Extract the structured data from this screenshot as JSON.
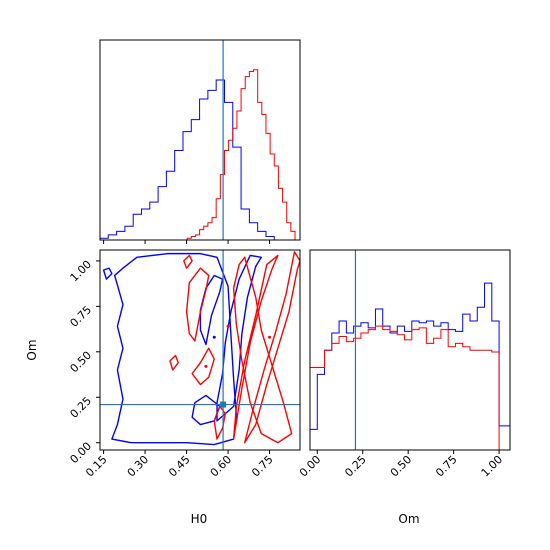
{
  "chart_data": {
    "type": "corner",
    "parameters": [
      "H0",
      "Om"
    ],
    "axis_labels": {
      "x_bottom_left": "H0",
      "x_bottom_right": "Om",
      "y_left": "Om"
    },
    "colors": {
      "series_a": "#0000ff",
      "series_b": "#ff0000",
      "truth": "#1f77b4"
    },
    "ranges": {
      "H0": [
        0.137,
        0.86
      ],
      "Om": [
        -0.04,
        1.06
      ]
    },
    "ticks": {
      "H0": [
        "0.15",
        "0.30",
        "0.45",
        "0.60",
        "0.75"
      ],
      "Om": [
        "0.00",
        "0.25",
        "0.50",
        "0.75",
        "1.00"
      ]
    },
    "truth": {
      "H0": 0.582,
      "Om": 0.21
    },
    "hist_H0": {
      "bin_edges": [
        0.137,
        0.152,
        0.167,
        0.182,
        0.197,
        0.212,
        0.227,
        0.242,
        0.257,
        0.272,
        0.287,
        0.302,
        0.317,
        0.332,
        0.347,
        0.362,
        0.377,
        0.392,
        0.407,
        0.422,
        0.437,
        0.452,
        0.467,
        0.482,
        0.497,
        0.512,
        0.527,
        0.542,
        0.557,
        0.572,
        0.587,
        0.602,
        0.617,
        0.632,
        0.647,
        0.662,
        0.677,
        0.692,
        0.707,
        0.722,
        0.737,
        0.752,
        0.767,
        0.782,
        0.797,
        0.812,
        0.827,
        0.842,
        0.86
      ],
      "blue": [
        0.01,
        0.01,
        0.03,
        0.03,
        0.05,
        0.05,
        0.08,
        0.08,
        0.15,
        0.15,
        0.18,
        0.18,
        0.22,
        0.22,
        0.31,
        0.31,
        0.4,
        0.4,
        0.52,
        0.52,
        0.63,
        0.63,
        0.7,
        0.7,
        0.82,
        0.82,
        0.87,
        0.87,
        0.93,
        0.93,
        0.8,
        0.8,
        0.54,
        0.54,
        0.18,
        0.18,
        0.1,
        0.1,
        0.05,
        0.05,
        0.02,
        0.02,
        0.0,
        0.0,
        0.0,
        0.0,
        0.0,
        0.0
      ],
      "red": [
        0.0,
        0.0,
        0.0,
        0.0,
        0.0,
        0.0,
        0.0,
        0.0,
        0.0,
        0.0,
        0.0,
        0.0,
        0.0,
        0.0,
        0.0,
        0.0,
        0.0,
        0.0,
        0.0,
        0.0,
        0.0,
        0.01,
        0.02,
        0.03,
        0.06,
        0.08,
        0.1,
        0.13,
        0.24,
        0.38,
        0.52,
        0.58,
        0.65,
        0.75,
        0.88,
        0.95,
        0.98,
        0.99,
        0.8,
        0.73,
        0.62,
        0.5,
        0.43,
        0.3,
        0.22,
        0.1,
        0.05,
        0.0
      ]
    },
    "hist_Om": {
      "bin_edges": [
        -0.04,
        0.0,
        0.04,
        0.08,
        0.12,
        0.16,
        0.2,
        0.24,
        0.28,
        0.32,
        0.36,
        0.4,
        0.44,
        0.48,
        0.52,
        0.56,
        0.6,
        0.64,
        0.68,
        0.72,
        0.76,
        0.8,
        0.84,
        0.88,
        0.92,
        0.96,
        1.0,
        1.06
      ],
      "blue": [
        0.12,
        0.44,
        0.58,
        0.68,
        0.75,
        0.68,
        0.72,
        0.74,
        0.71,
        0.82,
        0.72,
        0.68,
        0.72,
        0.69,
        0.75,
        0.74,
        0.75,
        0.72,
        0.74,
        0.7,
        0.69,
        0.79,
        0.75,
        0.83,
        0.97,
        0.75,
        0.14
      ],
      "red": [
        0.48,
        0.48,
        0.58,
        0.62,
        0.66,
        0.63,
        0.65,
        0.68,
        0.7,
        0.72,
        0.7,
        0.69,
        0.67,
        0.64,
        0.7,
        0.71,
        0.62,
        0.65,
        0.7,
        0.6,
        0.62,
        0.6,
        0.58,
        0.58,
        0.58,
        0.57,
        0.0
      ]
    },
    "contours_2d": {
      "blue": [
        [
          [
            0.19,
            0.92
          ],
          [
            0.22,
            0.96
          ],
          [
            0.27,
            1.02
          ],
          [
            0.38,
            1.04
          ],
          [
            0.5,
            1.04
          ],
          [
            0.56,
            1.02
          ],
          [
            0.6,
            0.86
          ],
          [
            0.61,
            0.6
          ],
          [
            0.62,
            0.35
          ],
          [
            0.63,
            0.15
          ],
          [
            0.62,
            0.02
          ],
          [
            0.55,
            -0.01
          ],
          [
            0.45,
            0.0
          ],
          [
            0.35,
            0.0
          ],
          [
            0.25,
            0.0
          ],
          [
            0.18,
            0.02
          ],
          [
            0.2,
            0.1
          ],
          [
            0.22,
            0.24
          ],
          [
            0.2,
            0.4
          ],
          [
            0.22,
            0.52
          ],
          [
            0.2,
            0.64
          ],
          [
            0.22,
            0.76
          ],
          [
            0.19,
            0.92
          ]
        ],
        [
          [
            0.56,
            0.12
          ],
          [
            0.62,
            0.2
          ],
          [
            0.64,
            0.4
          ],
          [
            0.65,
            0.6
          ],
          [
            0.67,
            0.8
          ],
          [
            0.7,
            0.97
          ],
          [
            0.72,
            1.02
          ],
          [
            0.68,
            1.03
          ],
          [
            0.64,
            0.9
          ],
          [
            0.61,
            0.72
          ],
          [
            0.59,
            0.55
          ],
          [
            0.58,
            0.38
          ],
          [
            0.56,
            0.22
          ],
          [
            0.56,
            0.12
          ]
        ],
        [
          [
            0.52,
            0.54
          ],
          [
            0.54,
            0.7
          ],
          [
            0.57,
            0.83
          ],
          [
            0.58,
            0.9
          ],
          [
            0.55,
            0.92
          ],
          [
            0.52,
            0.85
          ],
          [
            0.5,
            0.73
          ],
          [
            0.5,
            0.62
          ],
          [
            0.52,
            0.54
          ]
        ],
        [
          [
            0.16,
            0.9
          ],
          [
            0.18,
            0.93
          ],
          [
            0.17,
            0.96
          ],
          [
            0.15,
            0.95
          ],
          [
            0.16,
            0.9
          ]
        ],
        [
          [
            0.5,
            0.1
          ],
          [
            0.55,
            0.12
          ],
          [
            0.57,
            0.2
          ],
          [
            0.52,
            0.26
          ],
          [
            0.48,
            0.22
          ],
          [
            0.47,
            0.14
          ],
          [
            0.5,
            0.1
          ]
        ]
      ],
      "red": [
        [
          [
            0.64,
            0.98
          ],
          [
            0.66,
            1.02
          ],
          [
            0.7,
            0.8
          ],
          [
            0.72,
            0.62
          ],
          [
            0.76,
            0.42
          ],
          [
            0.8,
            0.22
          ],
          [
            0.83,
            0.05
          ],
          [
            0.78,
            0.0
          ],
          [
            0.72,
            0.05
          ],
          [
            0.68,
            0.22
          ],
          [
            0.65,
            0.45
          ],
          [
            0.63,
            0.65
          ],
          [
            0.62,
            0.85
          ],
          [
            0.64,
            0.98
          ]
        ],
        [
          [
            0.66,
            0.0
          ],
          [
            0.7,
            0.1
          ],
          [
            0.74,
            0.32
          ],
          [
            0.78,
            0.52
          ],
          [
            0.82,
            0.72
          ],
          [
            0.85,
            0.95
          ],
          [
            0.86,
            1.0
          ],
          [
            0.84,
            1.05
          ],
          [
            0.81,
            0.82
          ],
          [
            0.77,
            0.6
          ],
          [
            0.73,
            0.4
          ],
          [
            0.69,
            0.18
          ],
          [
            0.66,
            0.0
          ]
        ],
        [
          [
            0.62,
            0.02
          ],
          [
            0.65,
            0.3
          ],
          [
            0.68,
            0.55
          ],
          [
            0.72,
            0.78
          ],
          [
            0.76,
            0.96
          ],
          [
            0.78,
            1.03
          ],
          [
            0.74,
            0.98
          ],
          [
            0.7,
            0.7
          ],
          [
            0.66,
            0.45
          ],
          [
            0.63,
            0.2
          ],
          [
            0.62,
            0.02
          ]
        ],
        [
          [
            0.48,
            0.56
          ],
          [
            0.5,
            0.72
          ],
          [
            0.52,
            0.84
          ],
          [
            0.53,
            0.92
          ],
          [
            0.5,
            0.96
          ],
          [
            0.46,
            0.88
          ],
          [
            0.45,
            0.72
          ],
          [
            0.46,
            0.6
          ],
          [
            0.48,
            0.56
          ]
        ],
        [
          [
            0.47,
            0.38
          ],
          [
            0.5,
            0.44
          ],
          [
            0.53,
            0.52
          ],
          [
            0.55,
            0.46
          ],
          [
            0.53,
            0.36
          ],
          [
            0.5,
            0.32
          ],
          [
            0.47,
            0.38
          ]
        ],
        [
          [
            0.4,
            0.4
          ],
          [
            0.42,
            0.44
          ],
          [
            0.41,
            0.48
          ],
          [
            0.39,
            0.45
          ],
          [
            0.4,
            0.4
          ]
        ],
        [
          [
            0.56,
            0.02
          ],
          [
            0.58,
            0.08
          ],
          [
            0.59,
            0.16
          ],
          [
            0.57,
            0.2
          ],
          [
            0.55,
            0.12
          ],
          [
            0.56,
            0.02
          ]
        ],
        [
          [
            0.45,
            0.96
          ],
          [
            0.47,
            1.0
          ],
          [
            0.46,
            1.03
          ],
          [
            0.44,
            1.0
          ],
          [
            0.45,
            0.96
          ]
        ]
      ],
      "red_points": [
        [
          0.75,
          0.58
        ],
        [
          0.52,
          0.42
        ],
        [
          0.6,
          0.64
        ]
      ],
      "blue_points": [
        [
          0.55,
          0.58
        ]
      ]
    }
  }
}
